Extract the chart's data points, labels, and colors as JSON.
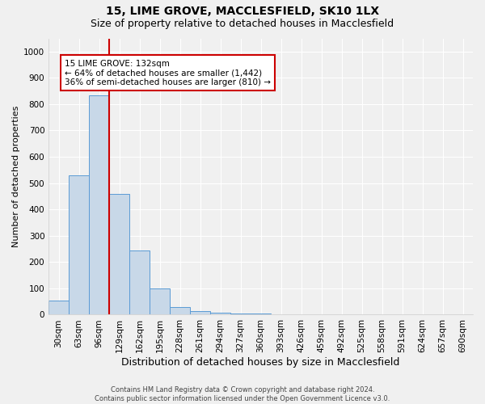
{
  "title": "15, LIME GROVE, MACCLESFIELD, SK10 1LX",
  "subtitle": "Size of property relative to detached houses in Macclesfield",
  "xlabel": "Distribution of detached houses by size in Macclesfield",
  "ylabel": "Number of detached properties",
  "bin_labels": [
    "30sqm",
    "63sqm",
    "96sqm",
    "129sqm",
    "162sqm",
    "195sqm",
    "228sqm",
    "261sqm",
    "294sqm",
    "327sqm",
    "360sqm",
    "393sqm",
    "426sqm",
    "459sqm",
    "492sqm",
    "525sqm",
    "558sqm",
    "591sqm",
    "624sqm",
    "657sqm",
    "690sqm"
  ],
  "bar_values": [
    55,
    530,
    835,
    460,
    245,
    100,
    30,
    15,
    8,
    5,
    3,
    2,
    2,
    1,
    1,
    0,
    0,
    0,
    0,
    0,
    0
  ],
  "bar_color": "#c8d8e8",
  "bar_edge_color": "#5b9bd5",
  "vline_x": 2.5,
  "vline_color": "#cc0000",
  "annotation_text": "15 LIME GROVE: 132sqm\n← 64% of detached houses are smaller (1,442)\n36% of semi-detached houses are larger (810) →",
  "annotation_box_color": "white",
  "annotation_box_edgecolor": "#cc0000",
  "ylim": [
    0,
    1050
  ],
  "yticks": [
    0,
    100,
    200,
    300,
    400,
    500,
    600,
    700,
    800,
    900,
    1000
  ],
  "footnote": "Contains HM Land Registry data © Crown copyright and database right 2024.\nContains public sector information licensed under the Open Government Licence v3.0.",
  "bg_color": "#f0f0f0",
  "grid_color": "white",
  "title_fontsize": 10,
  "subtitle_fontsize": 9,
  "xlabel_fontsize": 9,
  "ylabel_fontsize": 8,
  "tick_fontsize": 7.5,
  "annotation_fontsize": 7.5,
  "footnote_fontsize": 6
}
